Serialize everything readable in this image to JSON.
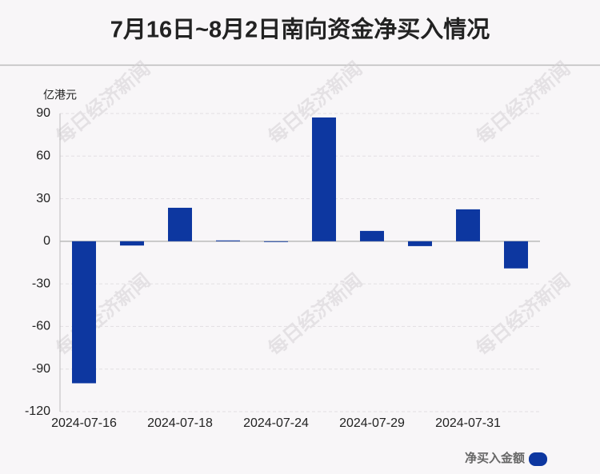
{
  "chart_data": {
    "type": "bar",
    "title": "7月16日~8月2日南向资金净买入情况",
    "ylabel": "亿港元",
    "watermark": "每日经济新闻",
    "categories": [
      "2024-07-16",
      null,
      "2024-07-18",
      null,
      "2024-07-24",
      null,
      "2024-07-29",
      null,
      "2024-07-31",
      null
    ],
    "series": [
      {
        "name": "净买入金额",
        "color": "#0d37a0",
        "values": [
          -100,
          -3,
          23.6,
          0.6,
          -0.5,
          87.2,
          7.3,
          -3.4,
          22.5,
          -19.1
        ]
      }
    ],
    "ylim": [
      -120,
      90
    ],
    "yticks": [
      -120,
      -90,
      -60,
      -30,
      0,
      30,
      60,
      90
    ],
    "grid": true
  }
}
